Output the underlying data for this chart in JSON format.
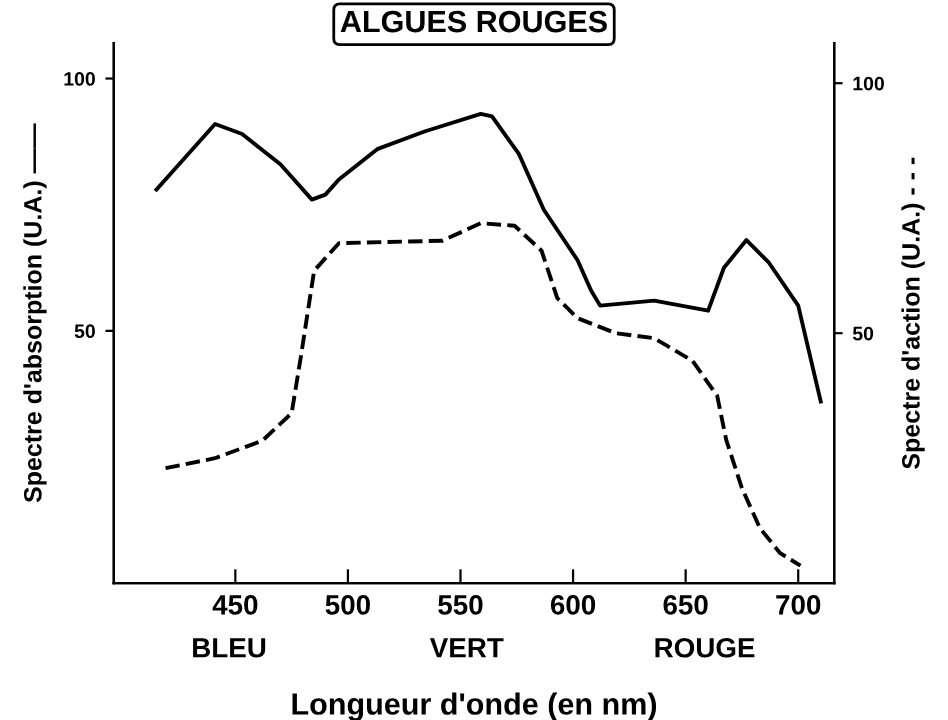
{
  "chart_data": {
    "type": "line",
    "title": "ALGUES ROUGES",
    "xlabel": "Longueur d'onde (en nm)",
    "ylabel": "Spectre d'absorption (U.A.) ——",
    "y2label": "Spectre d'action (U.A.) - - -",
    "annotations": [
      "BLEU",
      "VERT",
      "ROUGE"
    ],
    "xlim": [
      396,
      716
    ],
    "xticks": [
      450,
      500,
      550,
      600,
      650,
      700
    ],
    "ylim": [
      0,
      107
    ],
    "yticks": [
      50,
      100
    ],
    "y2lim": [
      0,
      108
    ],
    "y2ticks": [
      50,
      100
    ],
    "grid": false,
    "legend": false,
    "marker": "none",
    "series": [
      {
        "color": "#000000",
        "line_style": "solid",
        "x": [
          415,
          428,
          441,
          453,
          470,
          484,
          490,
          496,
          513,
          534,
          559,
          564,
          576,
          587,
          602,
          608,
          612,
          636,
          660,
          667,
          677,
          687,
          700,
          710
        ],
        "values": [
          78,
          84.5,
          91,
          89,
          83,
          76,
          77,
          80,
          86,
          89.5,
          93,
          92.5,
          85,
          74,
          64,
          58,
          55,
          56,
          54,
          62.5,
          68,
          63.5,
          55,
          36
        ]
      },
      {
        "color": "#000000",
        "line_style": "dashed",
        "axis": "y2",
        "x": [
          419,
          441,
          462,
          475,
          479,
          485,
          496,
          542,
          559,
          574,
          586,
          593,
          602,
          619,
          636,
          653,
          664,
          668,
          675,
          683,
          692,
          701
        ],
        "values": [
          23,
          25,
          28.5,
          34,
          45,
          62.5,
          68,
          68.5,
          72,
          71.5,
          66.5,
          57,
          53,
          50,
          49,
          44.5,
          37.5,
          28.7,
          19,
          11,
          6,
          3.5
        ]
      }
    ]
  }
}
